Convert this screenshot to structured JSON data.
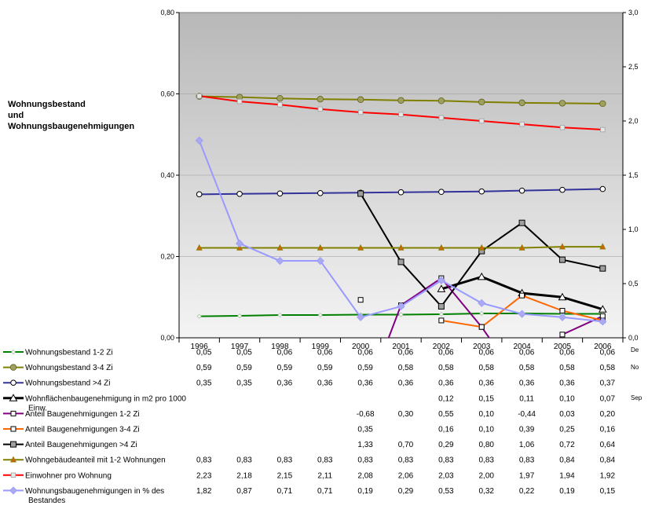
{
  "title": "Wohnungsbestand\nund\nWohnungsbaugenehmigungen",
  "edge_labels": [
    "De",
    "No",
    "Sep"
  ],
  "chart_data": {
    "type": "line",
    "categories": [
      "1996",
      "1997",
      "1998",
      "1999",
      "2000",
      "2001",
      "2002",
      "2003",
      "2004",
      "2005",
      "2006"
    ],
    "y_left": {
      "min": 0,
      "max": 0.8,
      "ticks": [
        "0,00",
        "0,20",
        "0,40",
        "0,60",
        "0,80"
      ]
    },
    "y_right": {
      "min": 0,
      "max": 3.0,
      "ticks": [
        "0,0",
        "0,5",
        "1,0",
        "1,5",
        "2,0",
        "2,5",
        "3,0"
      ]
    },
    "grid": true,
    "legend_placement": "bottom-table",
    "series": [
      {
        "name": "Wohnungsbestand 1-2 Zi",
        "axis": "left",
        "color": "#008000",
        "marker": "diamond-small",
        "width": 2,
        "values": [
          0.053,
          0.054,
          0.056,
          0.056,
          0.057,
          0.057,
          0.058,
          0.06,
          0.06,
          0.059,
          0.059
        ],
        "table": [
          "0,05",
          "0,05",
          "0,06",
          "0,06",
          "0,06",
          "0,06",
          "0,06",
          "0,06",
          "0,06",
          "0,06",
          "0,06"
        ]
      },
      {
        "name": "Wohnungsbestand 3-4 Zi",
        "axis": "left",
        "color": "#808000",
        "marker": "circle-filled-olive",
        "width": 2,
        "values": [
          0.594,
          0.592,
          0.589,
          0.587,
          0.586,
          0.584,
          0.583,
          0.58,
          0.578,
          0.577,
          0.576
        ],
        "table": [
          "0,59",
          "0,59",
          "0,59",
          "0,59",
          "0,59",
          "0,58",
          "0,58",
          "0,58",
          "0,58",
          "0,58",
          "0,58"
        ]
      },
      {
        "name": "Wohnungsbestand >4 Zi",
        "axis": "left",
        "color": "#333399",
        "marker": "circle-open",
        "width": 2,
        "values": [
          0.353,
          0.354,
          0.355,
          0.356,
          0.357,
          0.358,
          0.359,
          0.36,
          0.362,
          0.364,
          0.366
        ],
        "table": [
          "0,35",
          "0,35",
          "0,36",
          "0,36",
          "0,36",
          "0,36",
          "0,36",
          "0,36",
          "0,36",
          "0,36",
          "0,37"
        ]
      },
      {
        "name": "Wohnflächenbaugenehmigung in m2 pro 1000 Einw.",
        "axis": "left",
        "color": "#000000",
        "marker": "triangle-open",
        "width": 3,
        "values": [
          null,
          null,
          null,
          null,
          null,
          null,
          0.12,
          0.15,
          0.11,
          0.1,
          0.07
        ],
        "table": [
          "",
          "",
          "",
          "",
          "",
          "",
          "0,12",
          "0,15",
          "0,11",
          "0,10",
          "0,07"
        ]
      },
      {
        "name": "Anteil Baugenehmigungen 1-2 Zi",
        "axis": "right",
        "color": "#800080",
        "marker": "square-open",
        "width": 2,
        "values": [
          null,
          null,
          null,
          null,
          -0.68,
          0.3,
          0.55,
          0.1,
          -0.44,
          0.03,
          0.2
        ],
        "table": [
          "",
          "",
          "",
          "",
          "-0,68",
          "0,30",
          "0,55",
          "0,10",
          "-0,44",
          "0,03",
          "0,20"
        ]
      },
      {
        "name": "Anteil Baugenehmigungen 3-4 Zi",
        "axis": "right",
        "color": "#ff6600",
        "marker": "square-open",
        "width": 2,
        "values": [
          null,
          null,
          null,
          null,
          0.35,
          null,
          0.16,
          0.1,
          0.39,
          0.25,
          0.16
        ],
        "table": [
          "",
          "",
          "",
          "",
          "0,35",
          "",
          "0,16",
          "0,10",
          "0,39",
          "0,25",
          "0,16"
        ]
      },
      {
        "name": "Anteil Baugenehmigungen >4 Zi",
        "axis": "right",
        "color": "#000000",
        "marker": "square-gray",
        "width": 2,
        "values": [
          null,
          null,
          null,
          null,
          1.33,
          0.7,
          0.29,
          0.8,
          1.06,
          0.72,
          0.64
        ],
        "table": [
          "",
          "",
          "",
          "",
          "1,33",
          "0,70",
          "0,29",
          "0,80",
          "1,06",
          "0,72",
          "0,64"
        ]
      },
      {
        "name": "Wohngebäudeanteil mit 1-2 Wohnungen",
        "axis": "right",
        "color": "#808000",
        "marker": "star",
        "width": 2,
        "values": [
          0.83,
          0.83,
          0.83,
          0.83,
          0.83,
          0.83,
          0.83,
          0.83,
          0.83,
          0.84,
          0.84
        ],
        "table": [
          "0,83",
          "0,83",
          "0,83",
          "0,83",
          "0,83",
          "0,83",
          "0,83",
          "0,83",
          "0,83",
          "0,84",
          "0,84"
        ]
      },
      {
        "name": "Einwohner pro Wohnung",
        "axis": "right",
        "color": "#ff0000",
        "marker": "square-lightgray",
        "width": 2,
        "values": [
          2.23,
          2.18,
          2.15,
          2.11,
          2.08,
          2.06,
          2.03,
          2.0,
          1.97,
          1.94,
          1.92
        ],
        "table": [
          "2,23",
          "2,18",
          "2,15",
          "2,11",
          "2,08",
          "2,06",
          "2,03",
          "2,00",
          "1,97",
          "1,94",
          "1,92"
        ]
      },
      {
        "name": "Wohnungsbaugenehmigungen in % des Bestandes",
        "axis": "right",
        "color": "#9999ff",
        "marker": "diamond-lavender",
        "width": 2,
        "values": [
          1.82,
          0.87,
          0.71,
          0.71,
          0.19,
          0.29,
          0.53,
          0.32,
          0.22,
          0.19,
          0.15
        ],
        "table": [
          "1,82",
          "0,87",
          "0,71",
          "0,71",
          "0,19",
          "0,29",
          "0,53",
          "0,32",
          "0,22",
          "0,19",
          "0,15"
        ]
      }
    ]
  }
}
